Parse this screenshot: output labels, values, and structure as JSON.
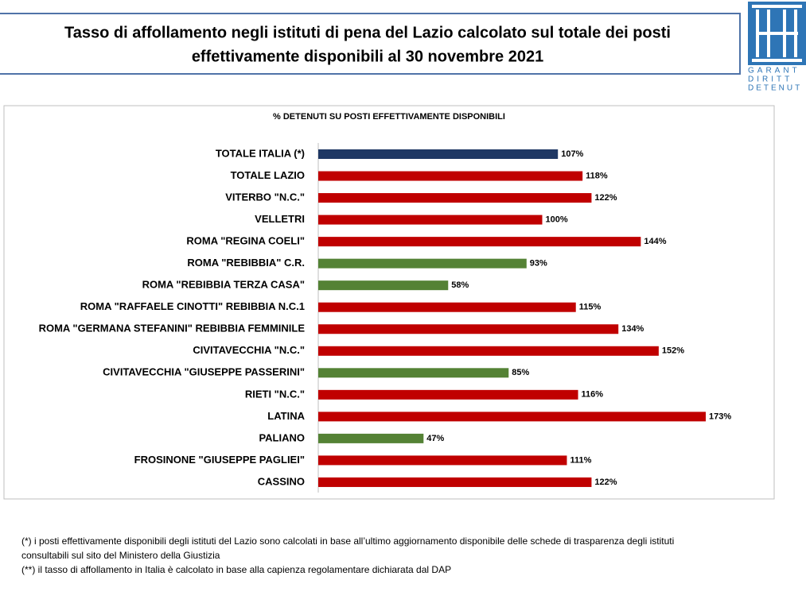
{
  "header": {
    "title_lines": [
      "Tasso di affollamento negli istituti di pena del Lazio calcolato sul totale dei posti",
      "effettivamente disponibili al 30 novembre 2021"
    ],
    "logo_lines": [
      "GARANT",
      "DIRITT",
      "DETENUT"
    ]
  },
  "chart_data": {
    "type": "bar",
    "orientation": "horizontal",
    "title": "% DETENUTI SU POSTI EFFETTIVAMENTE DISPONIBILI",
    "categories": [
      "TOTALE ITALIA (*)",
      "TOTALE LAZIO",
      "VITERBO \"N.C.\"",
      "VELLETRI",
      "ROMA \"REGINA COELI\"",
      "ROMA \"REBIBBIA\" C.R.",
      "ROMA \"REBIBBIA TERZA CASA\"",
      "ROMA \"RAFFAELE CINOTTI\" REBIBBIA N.C.1",
      "ROMA \"GERMANA STEFANINI\" REBIBBIA FEMMINILE",
      "CIVITAVECCHIA \"N.C.\"",
      "CIVITAVECCHIA \"GIUSEPPE PASSERINI\"",
      "RIETI \"N.C.\"",
      "LATINA",
      "PALIANO",
      "FROSINONE \"GIUSEPPE PAGLIEI\"",
      "CASSINO"
    ],
    "values": [
      107,
      118,
      122,
      100,
      144,
      93,
      58,
      115,
      134,
      152,
      85,
      116,
      173,
      47,
      111,
      122
    ],
    "value_labels": [
      "107%",
      "118%",
      "122%",
      "100%",
      "144%",
      "93%",
      "58%",
      "115%",
      "134%",
      "152%",
      "85%",
      "116%",
      "173%",
      "47%",
      "111%",
      "122%"
    ],
    "colors": [
      "#1f3864",
      "#c00000",
      "#c00000",
      "#c00000",
      "#c00000",
      "#548235",
      "#548235",
      "#c00000",
      "#c00000",
      "#c00000",
      "#548235",
      "#c00000",
      "#c00000",
      "#548235",
      "#c00000",
      "#c00000"
    ],
    "xlim": [
      0,
      200
    ]
  },
  "footnotes": [
    "(*) i posti effettivamente disponibili degli istituti del Lazio sono calcolati in base all’ultimo aggiornamento disponibile delle schede di trasparenza degli istituti",
    "consultabili sul sito del Ministero della Giustizia",
    "(**) il tasso di affollamento in Italia è calcolato in base alla capienza regolamentare dichiarata dal DAP"
  ]
}
